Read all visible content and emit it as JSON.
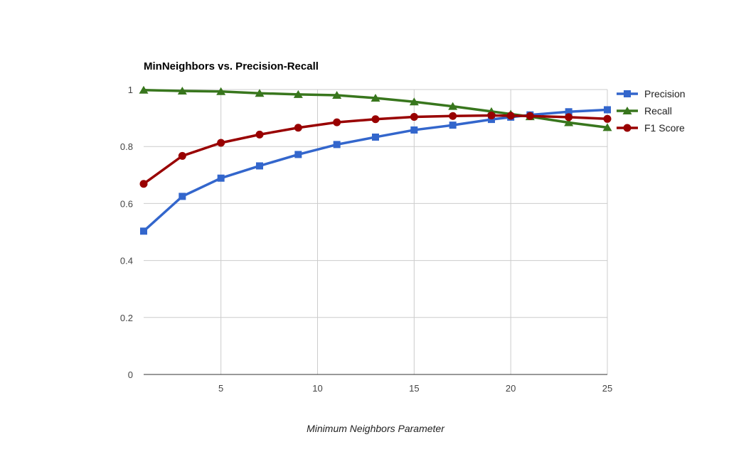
{
  "chart_data": {
    "type": "line",
    "title": "MinNeighbors vs. Precision-Recall",
    "xlabel": "Minimum Neighbors Parameter",
    "ylabel": "",
    "xlim": [
      1,
      25
    ],
    "ylim": [
      0,
      1
    ],
    "x_ticks": [
      "5",
      "10",
      "15",
      "20",
      "25"
    ],
    "y_ticks": [
      "0",
      "0.2",
      "0.4",
      "0.6",
      "0.8",
      "1"
    ],
    "grid": true,
    "legend_position": "right",
    "x": [
      1,
      3,
      5,
      7,
      9,
      11,
      13,
      15,
      17,
      19,
      20,
      21,
      23,
      25
    ],
    "series": [
      {
        "name": "Precision",
        "color": "#3366cc",
        "marker": "square",
        "values": [
          0.503,
          0.625,
          0.689,
          0.732,
          0.772,
          0.807,
          0.833,
          0.858,
          0.875,
          0.895,
          0.903,
          0.911,
          0.922,
          0.929
        ]
      },
      {
        "name": "Recall",
        "color": "#38761d",
        "marker": "triangle",
        "values": [
          0.998,
          0.995,
          0.993,
          0.987,
          0.983,
          0.98,
          0.97,
          0.957,
          0.941,
          0.923,
          0.914,
          0.905,
          0.884,
          0.867
        ]
      },
      {
        "name": "F1 Score",
        "color": "#990000",
        "marker": "circle",
        "values": [
          0.669,
          0.767,
          0.813,
          0.842,
          0.866,
          0.885,
          0.896,
          0.904,
          0.907,
          0.909,
          0.908,
          0.907,
          0.903,
          0.897
        ]
      }
    ]
  }
}
